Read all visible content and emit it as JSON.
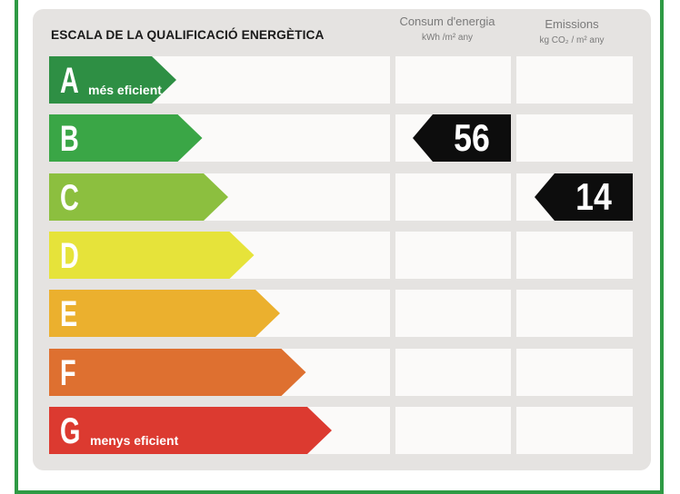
{
  "label": {
    "title": "ESCALA DE LA QUALIFICACIÓ ENERGÈTICA",
    "columns": [
      {
        "title": "Consum d'energia",
        "unit": "kWh /m² any"
      },
      {
        "title": "Emissions",
        "unit": "kg CO₂ / m² any"
      }
    ]
  },
  "classes": [
    {
      "letter": "A",
      "note": "més eficient",
      "color": "#2e8f44"
    },
    {
      "letter": "B",
      "note": "",
      "color": "#3aa646"
    },
    {
      "letter": "C",
      "note": "",
      "color": "#8cbf3f"
    },
    {
      "letter": "D",
      "note": "",
      "color": "#e6e33a"
    },
    {
      "letter": "E",
      "note": "",
      "color": "#ebb02e"
    },
    {
      "letter": "F",
      "note": "",
      "color": "#de7030"
    },
    {
      "letter": "G",
      "note": "menys eficient",
      "color": "#dc3a30"
    }
  ],
  "ratings": {
    "consumption": {
      "class": "B",
      "value": "56"
    },
    "emissions": {
      "class": "C",
      "value": "14"
    }
  }
}
